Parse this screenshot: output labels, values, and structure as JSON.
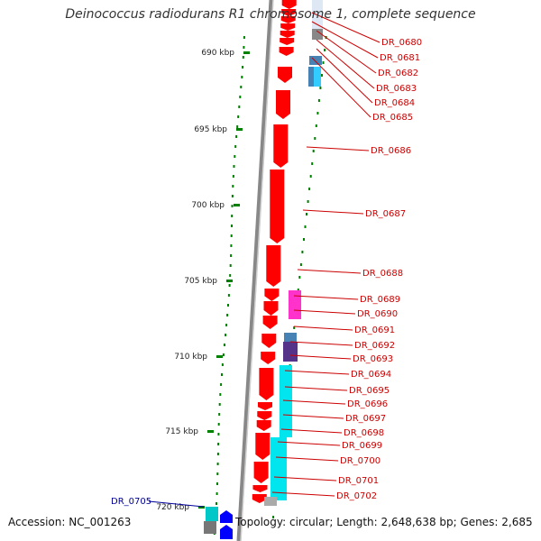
{
  "title": "Deinococcus radiodurans R1 chromosome 1, complete sequence",
  "footer": {
    "accession": "Accession: NC_001263",
    "summary": "Topology: circular; Length: 2,648,638 bp; Genes: 2,685"
  },
  "colors": {
    "forward_gene": "#ff0000",
    "reverse_gene": "#0000ff",
    "backbone": "#888888",
    "tick": "#008000",
    "label_red": "#cc0000",
    "label_blue": "#000099",
    "cog_cyan": "#00e5ee",
    "cog_magenta": "#ff33cc",
    "cog_steel": "#4682b4",
    "cog_purple": "#553388"
  },
  "scale_ticks": [
    {
      "label": "690 kbp"
    },
    {
      "label": "695 kbp"
    },
    {
      "label": "700 kbp"
    },
    {
      "label": "705 kbp"
    },
    {
      "label": "710 kbp"
    },
    {
      "label": "715 kbp"
    },
    {
      "label": "720 kbp"
    }
  ],
  "gene_labels": [
    {
      "name": "DR_0680",
      "strand": "forward"
    },
    {
      "name": "DR_0681",
      "strand": "forward"
    },
    {
      "name": "DR_0682",
      "strand": "forward"
    },
    {
      "name": "DR_0683",
      "strand": "forward"
    },
    {
      "name": "DR_0684",
      "strand": "forward"
    },
    {
      "name": "DR_0685",
      "strand": "forward"
    },
    {
      "name": "DR_0686",
      "strand": "forward"
    },
    {
      "name": "DR_0687",
      "strand": "forward"
    },
    {
      "name": "DR_0688",
      "strand": "forward"
    },
    {
      "name": "DR_0689",
      "strand": "forward"
    },
    {
      "name": "DR_0690",
      "strand": "forward"
    },
    {
      "name": "DR_0691",
      "strand": "forward"
    },
    {
      "name": "DR_0692",
      "strand": "forward"
    },
    {
      "name": "DR_0693",
      "strand": "forward"
    },
    {
      "name": "DR_0694",
      "strand": "forward"
    },
    {
      "name": "DR_0695",
      "strand": "forward"
    },
    {
      "name": "DR_0696",
      "strand": "forward"
    },
    {
      "name": "DR_0697",
      "strand": "forward"
    },
    {
      "name": "DR_0698",
      "strand": "forward"
    },
    {
      "name": "DR_0699",
      "strand": "forward"
    },
    {
      "name": "DR_0700",
      "strand": "forward"
    },
    {
      "name": "DR_0701",
      "strand": "forward"
    },
    {
      "name": "DR_0702",
      "strand": "forward"
    },
    {
      "name": "DR_0705",
      "strand": "reverse"
    }
  ]
}
